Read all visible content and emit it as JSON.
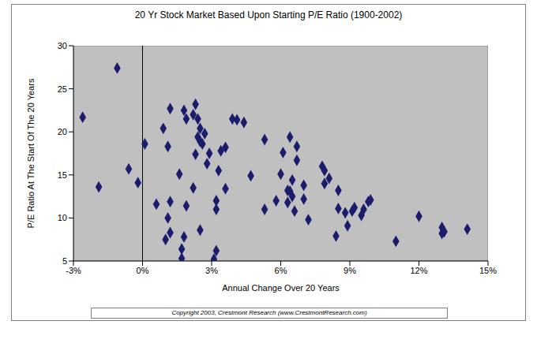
{
  "chart_data": {
    "type": "scatter",
    "title": "20 Yr Stock Market Based Upon Starting P/E Ratio (1900-2002)",
    "x_label": "Annual Change Over 20 Years",
    "y_label": "P/E Ratio At The Start Of The 20 Years",
    "annotations": [
      "Copyright 2003, Crestmont Research (www.CrestmontResearch.com)"
    ],
    "x": [
      -2.6,
      -1.1,
      -1.9,
      -0.6,
      -0.2,
      0.1,
      0.6,
      0.9,
      1.1,
      1.2,
      1.0,
      1.1,
      1.2,
      1.2,
      1.8,
      1.9,
      1.6,
      1.7,
      1.7,
      1.8,
      1.9,
      2.2,
      2.2,
      2.3,
      2.4,
      2.3,
      2.5,
      2.4,
      2.5,
      2.7,
      2.6,
      2.5,
      2.9,
      2.8,
      3.1,
      3.2,
      3.2,
      3.2,
      3.3,
      3.4,
      3.6,
      3.6,
      3.9,
      4.1,
      4.4,
      4.7,
      5.3,
      5.3,
      5.8,
      6.0,
      6.1,
      6.4,
      6.3,
      6.3,
      6.4,
      6.5,
      6.5,
      6.6,
      6.7,
      6.7,
      7.0,
      7.0,
      7.2,
      7.8,
      7.9,
      7.9,
      8.1,
      8.4,
      8.5,
      8.5,
      8.8,
      8.9,
      9.1,
      9.2,
      9.5,
      9.6,
      9.8,
      9.9,
      11.0,
      12.0,
      13.0,
      13.1,
      13.0,
      14.1
    ],
    "values": [
      21.7,
      27.4,
      13.6,
      15.7,
      14.1,
      18.6,
      11.6,
      20.4,
      18.3,
      22.7,
      7.5,
      10.0,
      11.9,
      8.3,
      22.5,
      21.5,
      15.1,
      5.3,
      6.4,
      7.8,
      11.4,
      13.5,
      22.0,
      23.2,
      21.5,
      17.4,
      18.9,
      19.4,
      20.4,
      19.8,
      18.6,
      8.6,
      17.5,
      16.3,
      5.2,
      6.2,
      12.0,
      11.0,
      15.5,
      17.8,
      18.2,
      13.4,
      21.5,
      21.4,
      21.1,
      14.9,
      19.1,
      11.0,
      12.0,
      15.1,
      17.6,
      19.4,
      11.8,
      13.2,
      13.1,
      12.5,
      14.4,
      10.8,
      18.3,
      16.7,
      13.8,
      12.2,
      9.8,
      16.0,
      15.5,
      14.0,
      14.6,
      7.9,
      13.2,
      11.1,
      10.6,
      9.1,
      10.8,
      11.2,
      10.3,
      11.0,
      11.9,
      12.1,
      7.3,
      10.2,
      8.9,
      8.4,
      8.2,
      8.7
    ],
    "color": "#1c1c6c",
    "marker": "diamond",
    "xlim": [
      -3,
      15
    ],
    "xticks": [
      {
        "value": -3,
        "label": "-3%"
      },
      {
        "value": 0,
        "label": "0%"
      },
      {
        "value": 3,
        "label": "3%"
      },
      {
        "value": 6,
        "label": "6%"
      },
      {
        "value": 9,
        "label": "9%"
      },
      {
        "value": 12,
        "label": "12%"
      },
      {
        "value": 15,
        "label": "15%"
      }
    ],
    "ylim": [
      5,
      30
    ],
    "yticks": [
      5,
      10,
      15,
      20,
      25,
      30
    ],
    "grid": false
  }
}
